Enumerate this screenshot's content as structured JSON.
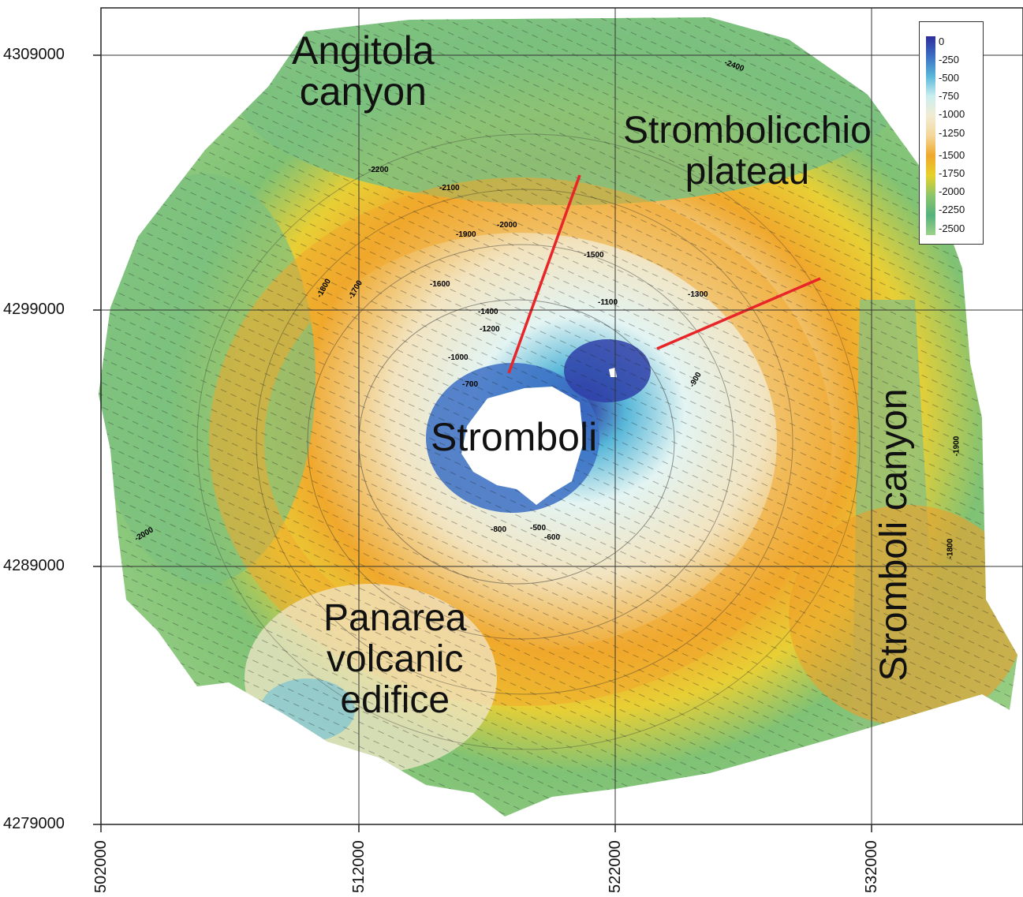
{
  "map": {
    "y_axis_labels": [
      "4309000",
      "4299000",
      "4289000",
      "4279000"
    ],
    "x_axis_labels": [
      "502000",
      "512000",
      "522000",
      "532000"
    ],
    "place_labels": {
      "angitola": "Angitola\ncanyon",
      "strombolicchio": "Strombolicchio\nplateau",
      "stromboli": "Stromboli",
      "stromboli_canyon": "Stromboli canyon",
      "panarea": "Panarea\nvolcanic\nedifice"
    },
    "contour_labels": [
      "-2400",
      "-2200",
      "-2100",
      "-2000",
      "-1900",
      "-1800",
      "-1700",
      "-1600",
      "-1500",
      "-1400",
      "-1300",
      "-1200",
      "-1100",
      "-1000",
      "-900",
      "-800",
      "-700",
      "-600",
      "-500",
      "-2000",
      "-1900",
      "-1800"
    ],
    "profile_lines": {
      "color": "#e8262a",
      "count": 2
    }
  },
  "legend": {
    "values": [
      "0",
      "-250",
      "-500",
      "-750",
      "-1000",
      "-1250",
      "-1500",
      "-1750",
      "-2000",
      "-2250",
      "-2500"
    ],
    "colors": [
      "#2c2d9c",
      "#3b6fc4",
      "#58b7d9",
      "#c9eef0",
      "#f2ecd2",
      "#f4d79a",
      "#f0a82c",
      "#e6d22a",
      "#8cc56a",
      "#55b27c",
      "#9ed188"
    ]
  }
}
